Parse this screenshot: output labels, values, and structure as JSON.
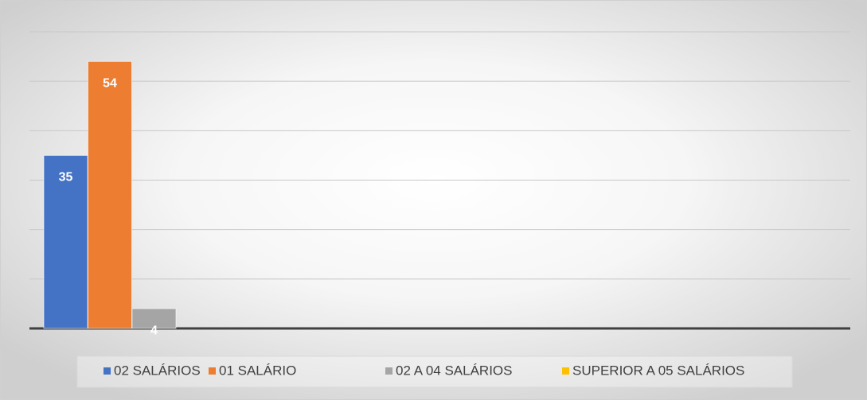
{
  "chart_data": {
    "type": "bar",
    "series": [
      {
        "name": "02 SALÁRIOS",
        "color": "#4472c4",
        "values": [
          35
        ]
      },
      {
        "name": "01 SALÁRIO",
        "color": "#ed7d31",
        "values": [
          54
        ]
      },
      {
        "name": "02 A 04 SALÁRIOS",
        "color": "#a5a5a5",
        "values": [
          4
        ]
      },
      {
        "name": "SUPERIOR A 05 SALÁRIOS",
        "color": "#ffc000",
        "values": [
          null
        ]
      }
    ],
    "ylim": [
      0,
      60
    ],
    "yticks": [
      0,
      10,
      20,
      30,
      40,
      50,
      60
    ],
    "grid": true,
    "legend": "bottom"
  }
}
